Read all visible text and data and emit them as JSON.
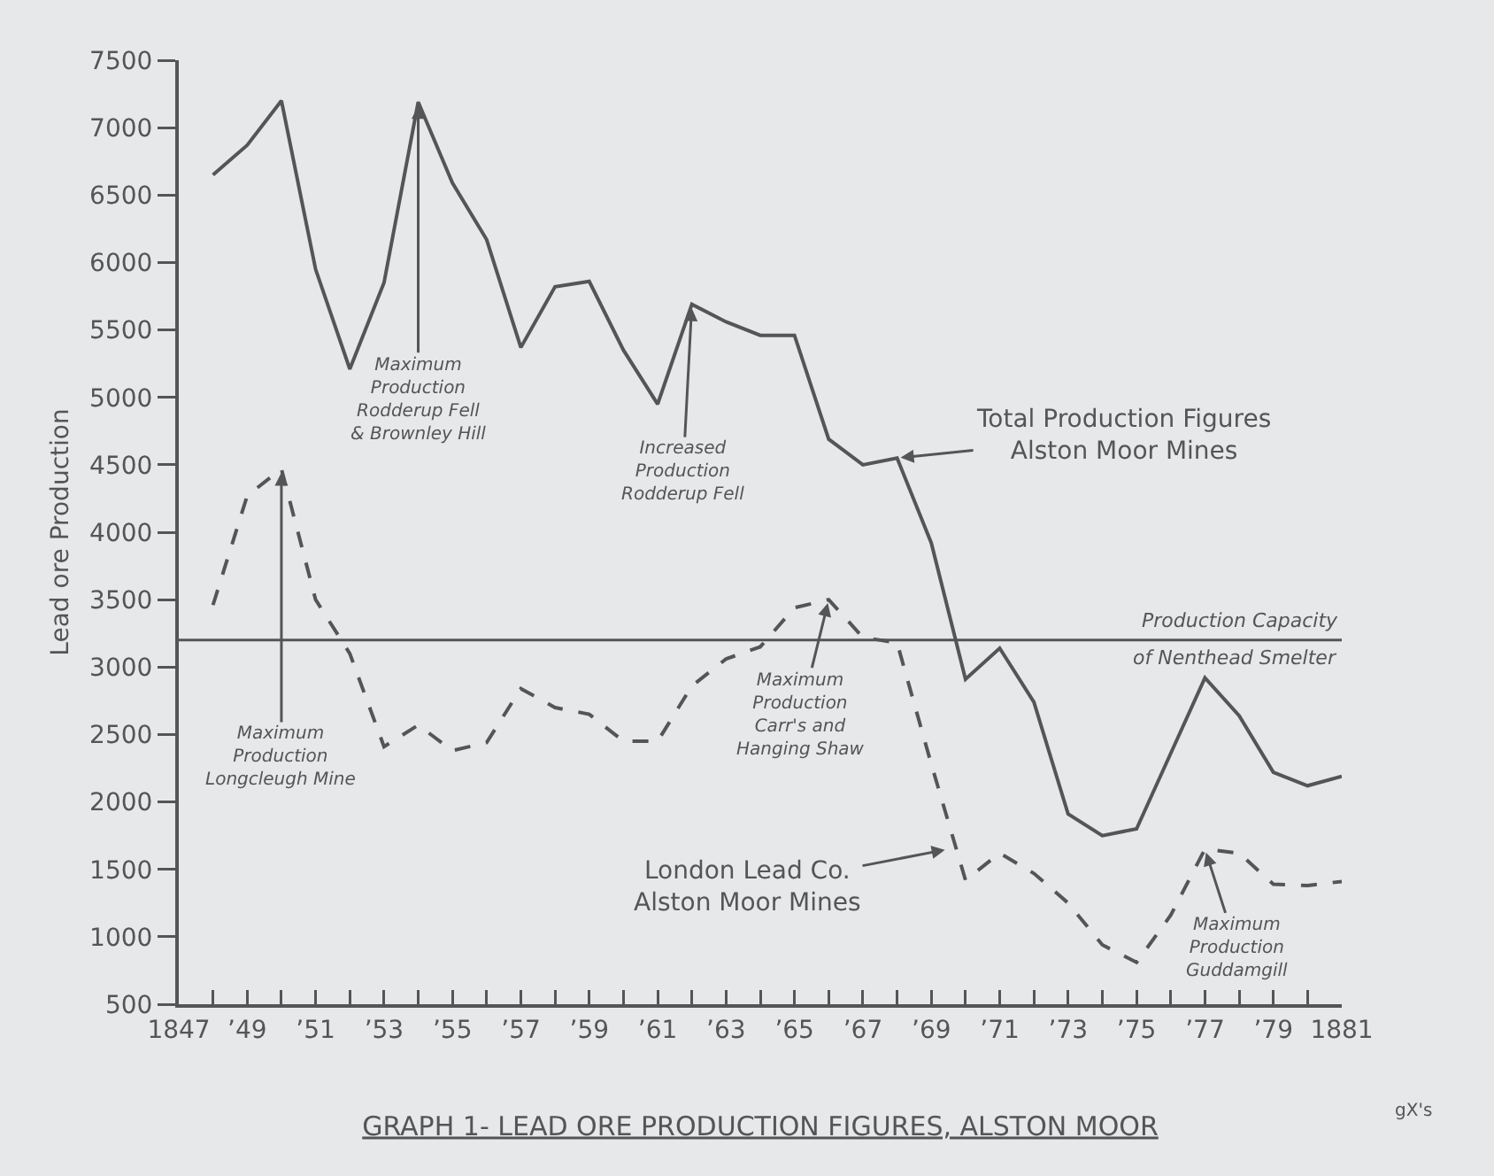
{
  "chart_data": {
    "type": "line",
    "title": "GRAPH 1- LEAD ORE PRODUCTION FIGURES, ALSTON MOOR",
    "ylabel": "Lead ore Production",
    "x": [
      1848,
      1849,
      1850,
      1851,
      1852,
      1853,
      1854,
      1855,
      1856,
      1857,
      1858,
      1859,
      1860,
      1861,
      1862,
      1863,
      1864,
      1865,
      1866,
      1867,
      1868,
      1869,
      1870,
      1871,
      1872,
      1873,
      1874,
      1875,
      1876,
      1877,
      1878,
      1879,
      1880,
      1881
    ],
    "series": [
      {
        "color": "#555555",
        "line_style": "solid",
        "values": [
          6650,
          6870,
          7200,
          5950,
          5210,
          5850,
          7190,
          6590,
          6170,
          5370,
          5820,
          5860,
          5350,
          4950,
          5690,
          5560,
          5460,
          5460,
          4690,
          4500,
          4550,
          3920,
          2910,
          3140,
          2740,
          1910,
          1750,
          1800,
          2360,
          2920,
          2640,
          2220,
          2120,
          2190
        ]
      },
      {
        "color": "#555555",
        "line_style": "dashed",
        "values": [
          3460,
          4270,
          4470,
          3500,
          3100,
          2410,
          2570,
          2380,
          2440,
          2840,
          2700,
          2650,
          2450,
          2450,
          2860,
          3060,
          3150,
          3440,
          3500,
          3220,
          3180,
          2280,
          1420,
          1620,
          1470,
          1250,
          940,
          810,
          1160,
          1650,
          1620,
          1390,
          1380,
          1410
        ]
      }
    ],
    "xlim": [
      1847,
      1881
    ],
    "xticks": [
      1847,
      {
        "value": 1848,
        "label": null
      },
      {
        "value": 1849,
        "label": "’49"
      },
      {
        "value": 1850,
        "label": null
      },
      {
        "value": 1851,
        "label": "’51"
      },
      {
        "value": 1852,
        "label": null
      },
      {
        "value": 1853,
        "label": "’53"
      },
      {
        "value": 1854,
        "label": null
      },
      {
        "value": 1855,
        "label": "’55"
      },
      {
        "value": 1856,
        "label": null
      },
      {
        "value": 1857,
        "label": "’57"
      },
      {
        "value": 1858,
        "label": null
      },
      {
        "value": 1859,
        "label": "’59"
      },
      {
        "value": 1860,
        "label": null
      },
      {
        "value": 1861,
        "label": "’61"
      },
      {
        "value": 1862,
        "label": null
      },
      {
        "value": 1863,
        "label": "’63"
      },
      {
        "value": 1864,
        "label": null
      },
      {
        "value": 1865,
        "label": "’65"
      },
      {
        "value": 1866,
        "label": null
      },
      {
        "value": 1867,
        "label": "’67"
      },
      {
        "value": 1868,
        "label": null
      },
      {
        "value": 1869,
        "label": "’69"
      },
      {
        "value": 1870,
        "label": null
      },
      {
        "value": 1871,
        "label": "’71"
      },
      {
        "value": 1872,
        "label": null
      },
      {
        "value": 1873,
        "label": "’73"
      },
      {
        "value": 1874,
        "label": null
      },
      {
        "value": 1875,
        "label": "’75"
      },
      {
        "value": 1876,
        "label": null
      },
      {
        "value": 1877,
        "label": "’77"
      },
      {
        "value": 1878,
        "label": null
      },
      {
        "value": 1879,
        "label": "’79"
      },
      {
        "value": 1880,
        "label": null
      },
      1881
    ],
    "ylim": [
      500,
      7500
    ],
    "yticks": [
      500,
      1000,
      1500,
      2000,
      2500,
      3000,
      3500,
      4000,
      4500,
      5000,
      5500,
      6000,
      6500,
      7000,
      7500
    ],
    "grid": false,
    "marker": "none",
    "ref_lines": [
      {
        "axis": "y",
        "value": 3200,
        "label": "Production Capacity\nof Nenthead Smelter",
        "color": "#555555",
        "line_style": "solid"
      }
    ],
    "annotations": [
      {
        "text": "Maximum\nProduction\nRodderup Fell\n& Brownley Hill",
        "x": 1854,
        "y": 7190
      },
      {
        "text": "Increased\nProduction\nRodderup Fell",
        "x": 1862,
        "y": 5690
      },
      {
        "text": "Total Production Figures\nAlston Moor Mines",
        "x": 1868,
        "y": 4550
      },
      {
        "text": "Maximum\nProduction\nLongcleugh Mine",
        "x": 1850,
        "y": 4470
      },
      {
        "text": "Maximum\nProduction\nCarr's and\nHanging Shaw",
        "x": 1866,
        "y": 3500
      },
      {
        "text": "London Lead Co.\nAlston Moor Mines",
        "x": 1869.5,
        "y": 1650
      },
      {
        "text": "Maximum\nProduction\nGuddamgill",
        "x": 1877,
        "y": 1650
      },
      "gX's"
    ]
  }
}
